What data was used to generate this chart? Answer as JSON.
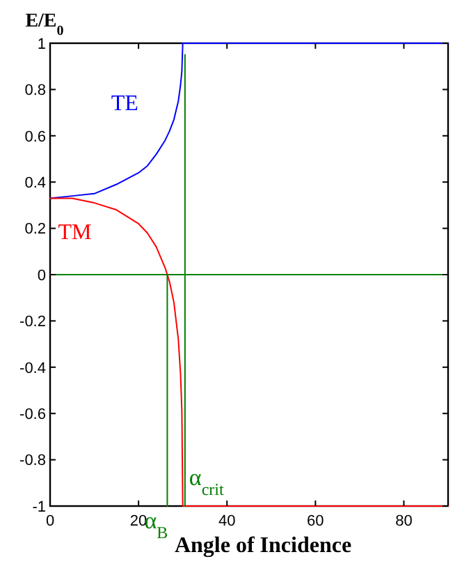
{
  "chart_data": {
    "type": "line",
    "ylabel": "E/E$_{0}$",
    "xlabel": "Angle of Incidence",
    "xlim": [
      0,
      90
    ],
    "xticks": [
      0,
      20,
      40,
      60,
      80
    ],
    "ylim": [
      -1,
      1
    ],
    "yticks": [
      -1,
      -0.8,
      -0.6,
      -0.4,
      -0.2,
      0,
      0.2,
      0.4,
      0.6,
      0.8,
      1
    ],
    "grid": false,
    "line_style": "solid",
    "series": [
      {
        "name": "TE",
        "color": "#0000ff",
        "x": [
          0,
          5,
          10,
          15,
          20,
          22,
          24,
          26,
          27,
          28,
          29,
          29.5,
          29.8,
          30,
          90
        ],
        "values": [
          0.33,
          0.34,
          0.35,
          0.39,
          0.44,
          0.47,
          0.52,
          0.58,
          0.62,
          0.67,
          0.75,
          0.82,
          0.88,
          1,
          1
        ]
      },
      {
        "name": "TM",
        "color": "#ff0000",
        "x": [
          0,
          5,
          10,
          15,
          20,
          22,
          24,
          26,
          27,
          28,
          29,
          29.5,
          29.8,
          30,
          90
        ],
        "values": [
          0.33,
          0.33,
          0.31,
          0.28,
          0.22,
          0.18,
          0.12,
          0.03,
          -0.03,
          -0.12,
          -0.28,
          -0.43,
          -0.59,
          -1,
          -1
        ]
      },
      {
        "color": "#008000",
        "x": [
          26.5,
          26.5
        ],
        "values": [
          -1,
          0
        ]
      },
      {
        "color": "#008000",
        "x": [
          30.5,
          30.5
        ],
        "values": [
          -1,
          0.95
        ]
      }
    ],
    "ref_lines": [
      {
        "axis": "y",
        "value": 0,
        "color": "#008000"
      }
    ],
    "annotations": [
      {
        "text": "α$_{B}$",
        "x": 26.5,
        "y": -1
      },
      {
        "text": "α$_{crit}$",
        "x": 30.5,
        "y": -0.88
      }
    ]
  }
}
